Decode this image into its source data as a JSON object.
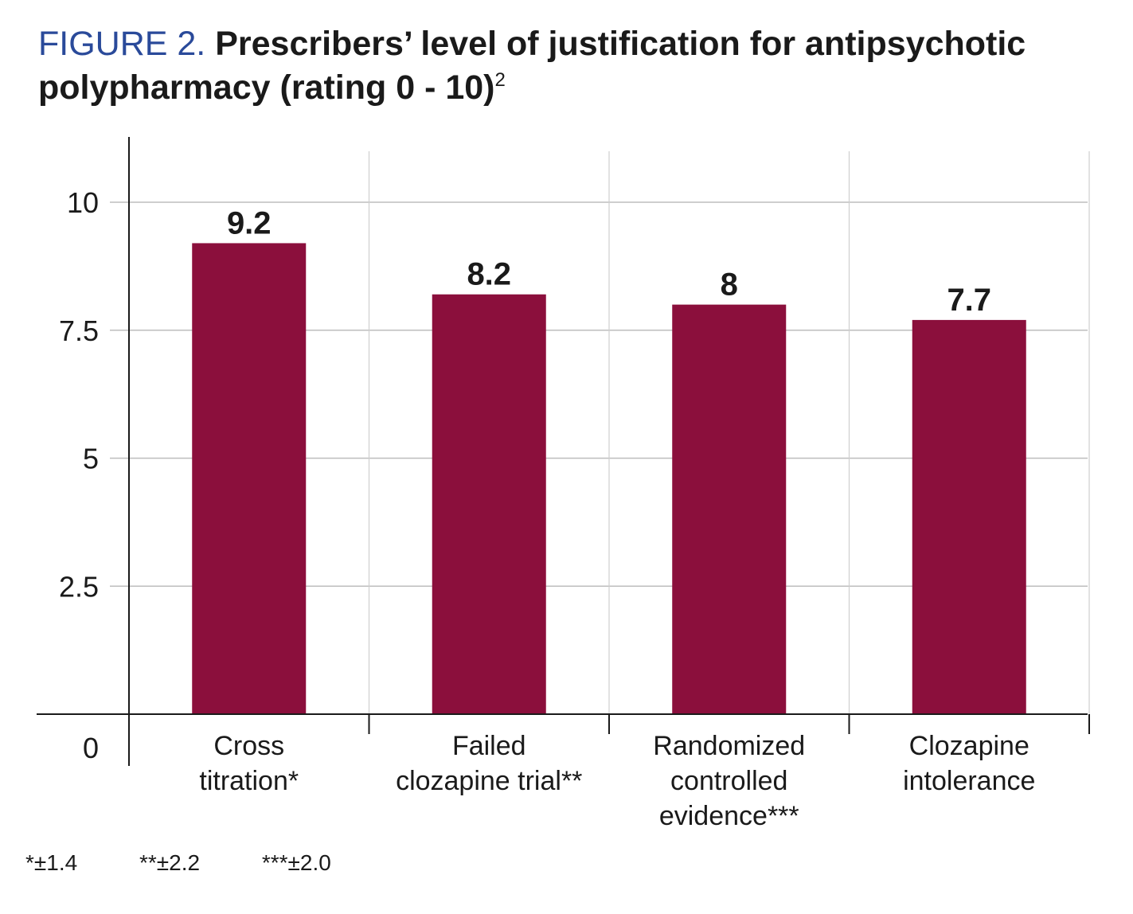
{
  "title": {
    "figure_label": "FIGURE  2.",
    "text": "Prescribers’ level of justification for antipsychotic polypharmacy (rating 0 - 10)",
    "superscript": "2"
  },
  "chart_data": {
    "type": "bar",
    "categories": [
      [
        "Cross",
        "titration*"
      ],
      [
        "Failed",
        "clozapine trial**"
      ],
      [
        "Randomized",
        "controlled",
        "evidence***"
      ],
      [
        "Clozapine",
        "intolerance"
      ]
    ],
    "values": [
      9.2,
      8.2,
      8,
      7.7
    ],
    "value_labels": [
      "9.2",
      "8.2",
      "8",
      "7.7"
    ],
    "ylim": [
      0,
      11
    ],
    "yticks": [
      "2.5",
      "5",
      "7.5",
      "10"
    ],
    "ytick_values": [
      2.5,
      5,
      7.5,
      10
    ],
    "zero_label": "0",
    "grid": true,
    "xlabel": "",
    "ylabel": "",
    "bar_color": "#8b0f3c"
  },
  "footnotes": [
    "*±1.4",
    "**±2.2",
    "***±2.0"
  ]
}
